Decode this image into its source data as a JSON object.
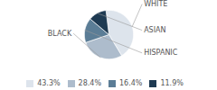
{
  "chart_data": {
    "type": "pie",
    "categories": [
      "WHITE",
      "BLACK",
      "HISPANIC",
      "ASIAN"
    ],
    "values": [
      43.3,
      28.4,
      16.4,
      11.9
    ],
    "value_labels": [
      "43.3%",
      "28.4%",
      "16.4%",
      "11.9%"
    ],
    "colors": [
      "#dde4ec",
      "#adbccc",
      "#5b7d96",
      "#1e3a52"
    ],
    "legend": "bottom"
  }
}
